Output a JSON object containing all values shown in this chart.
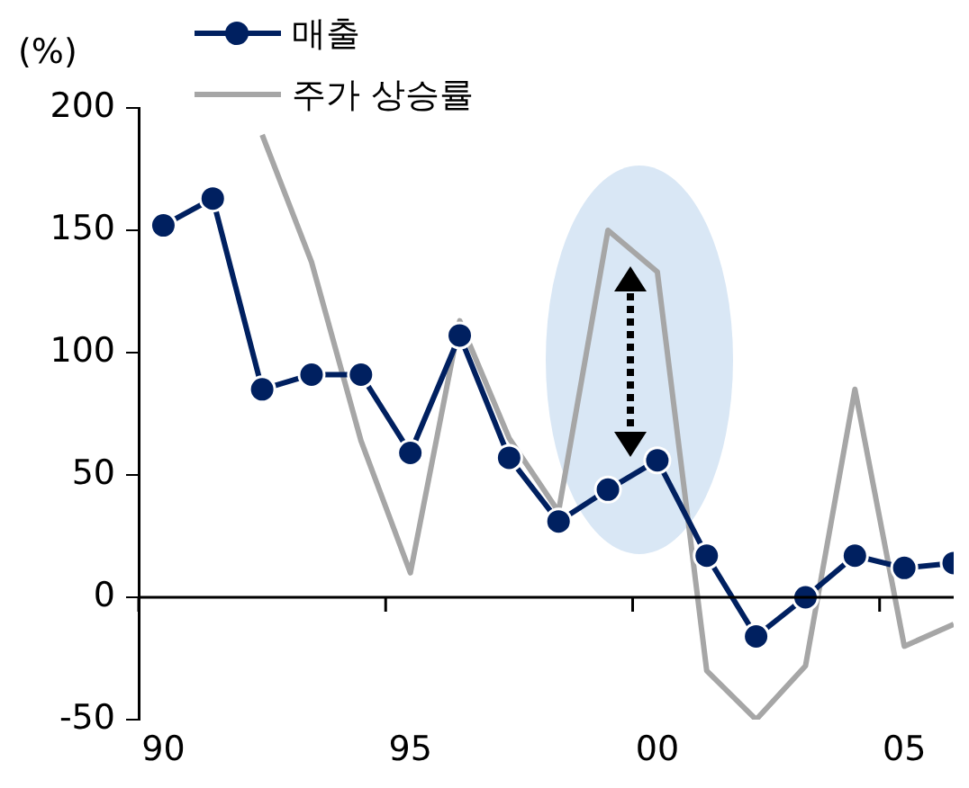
{
  "chart_data": {
    "type": "line",
    "ylabel": "(%)",
    "x": [
      1990,
      1991,
      1992,
      1993,
      1994,
      1995,
      1996,
      1997,
      1998,
      1999,
      2000,
      2001,
      2002,
      2003,
      2004,
      2005,
      2006
    ],
    "series": [
      {
        "name": "매출",
        "color": "#002060",
        "marker": "circle",
        "values": [
          152,
          163,
          85,
          91,
          91,
          59,
          107,
          57,
          31,
          44,
          56,
          17,
          -16,
          0,
          17,
          12,
          14
        ]
      },
      {
        "name": "주가 상승률",
        "color": "#a6a6a6",
        "marker": "none",
        "values": [
          null,
          null,
          189,
          137,
          64,
          10,
          113,
          65,
          35,
          150,
          133,
          -30,
          -50,
          -28,
          85,
          -20,
          -11
        ]
      }
    ],
    "xlim": [
      1989.5,
      2006
    ],
    "xticks": [
      {
        "value": 1989.5,
        "label": null
      },
      {
        "value": 1990,
        "label": "90"
      },
      {
        "value": 1994.5,
        "label": null
      },
      {
        "value": 1995,
        "label": "95"
      },
      {
        "value": 1999.5,
        "label": null
      },
      {
        "value": 2000,
        "label": "00"
      },
      {
        "value": 2004.5,
        "label": null
      },
      {
        "value": 2005,
        "label": "05"
      }
    ],
    "ylim": [
      -50,
      200
    ],
    "yticks": [
      -50,
      0,
      50,
      100,
      150,
      200
    ],
    "ref_lines": [
      {
        "axis": "y",
        "value": 0,
        "color": "#000000"
      }
    ],
    "grid": false,
    "legend": "top",
    "line_style": "solid"
  }
}
